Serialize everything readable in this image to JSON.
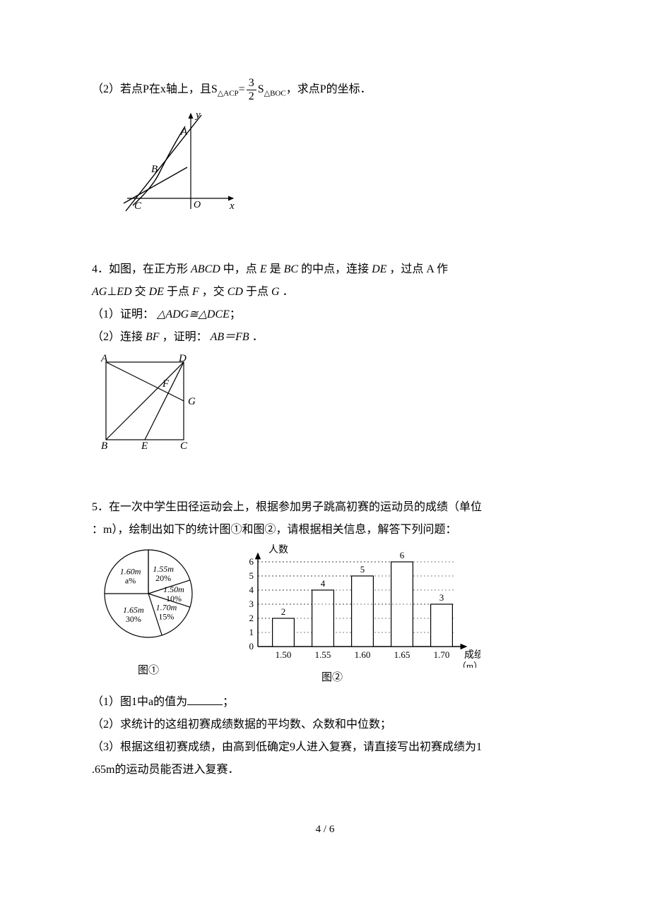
{
  "q3": {
    "part2_prefix": "（2）若点P在x轴上，且S",
    "sub1": "△ACP",
    "eq": "=",
    "frac_num": "3",
    "frac_den": "2",
    "after_frac": "S",
    "sub2": "△BOC",
    "tail": "，求点P的坐标．",
    "graph": {
      "y_label": "y",
      "x_label": "x",
      "O": "O",
      "A": "A",
      "B": "B",
      "C": "C"
    }
  },
  "q4": {
    "l1a": "4．如图，在正方形",
    "l1b": "ABCD",
    "l1c": "中，点",
    "l1d": "E",
    "l1e": "是",
    "l1f": "BC",
    "l1g": "的中点，连接",
    "l1h": "DE",
    "l1i": "，过点 A 作",
    "l2a": "AG",
    "l2b": "⊥",
    "l2c": "ED",
    "l2d": "交",
    "l2e": "DE",
    "l2f": "于点",
    "l2g": "F",
    "l2h": "，交",
    "l2i": "CD",
    "l2j": "于点",
    "l2k": "G",
    "l2l": "．",
    "p1a": "（1）证明：",
    "p1b": "△ADG≅△DCE",
    "p1c": "；",
    "p2a": "（2）连接",
    "p2b": "BF",
    "p2c": "，证明：",
    "p2d": "AB＝FB",
    "p2e": "．",
    "fig": {
      "A": "A",
      "B": "B",
      "C": "C",
      "D": "D",
      "E": "E",
      "F": "F",
      "G": "G"
    }
  },
  "q5": {
    "l1": "5．在一次中学生田径运动会上，根据参加男子跳高初赛的运动员的成绩（单位",
    "l2": "：m），绘制出如下的统计图①和图②，请根据相关信息，解答下列问题：",
    "pie": {
      "caption": "图①",
      "slices": [
        {
          "label1": "1.60m",
          "label2": "a%",
          "color": "#ffffff"
        },
        {
          "label1": "1.55m",
          "label2": "20%",
          "color": "#ffffff"
        },
        {
          "label1": "1.50m",
          "label2": "10%",
          "color": "#ffffff"
        },
        {
          "label1": "1.70m",
          "label2": "15%",
          "color": "#ffffff"
        },
        {
          "label1": "1.65m",
          "label2": "30%",
          "color": "#ffffff"
        }
      ]
    },
    "bar": {
      "caption": "图②",
      "ylabel": "人数",
      "xlabel": "成绩",
      "xunit": "（m）",
      "categories": [
        "1.50",
        "1.55",
        "1.60",
        "1.65",
        "1.70"
      ],
      "values": [
        2,
        4,
        5,
        6,
        3
      ],
      "yticks": [
        0,
        1,
        2,
        3,
        4,
        5,
        6
      ],
      "bar_color": "#ffffff",
      "bar_border": "#000000",
      "grid_color": "#000000",
      "background": "#ffffff"
    },
    "p1a": "（1）图1中a的值为",
    "p1b": "；",
    "p2": "（2）求统计的这组初赛成绩数据的平均数、众数和中位数；",
    "p3a": "（3）根据这组初赛成绩，由高到低确定9人进入复赛，请直接写出初赛成绩为1",
    "p3b": ".65m的运动员能否进入复赛．"
  },
  "page_num": "4 / 6"
}
